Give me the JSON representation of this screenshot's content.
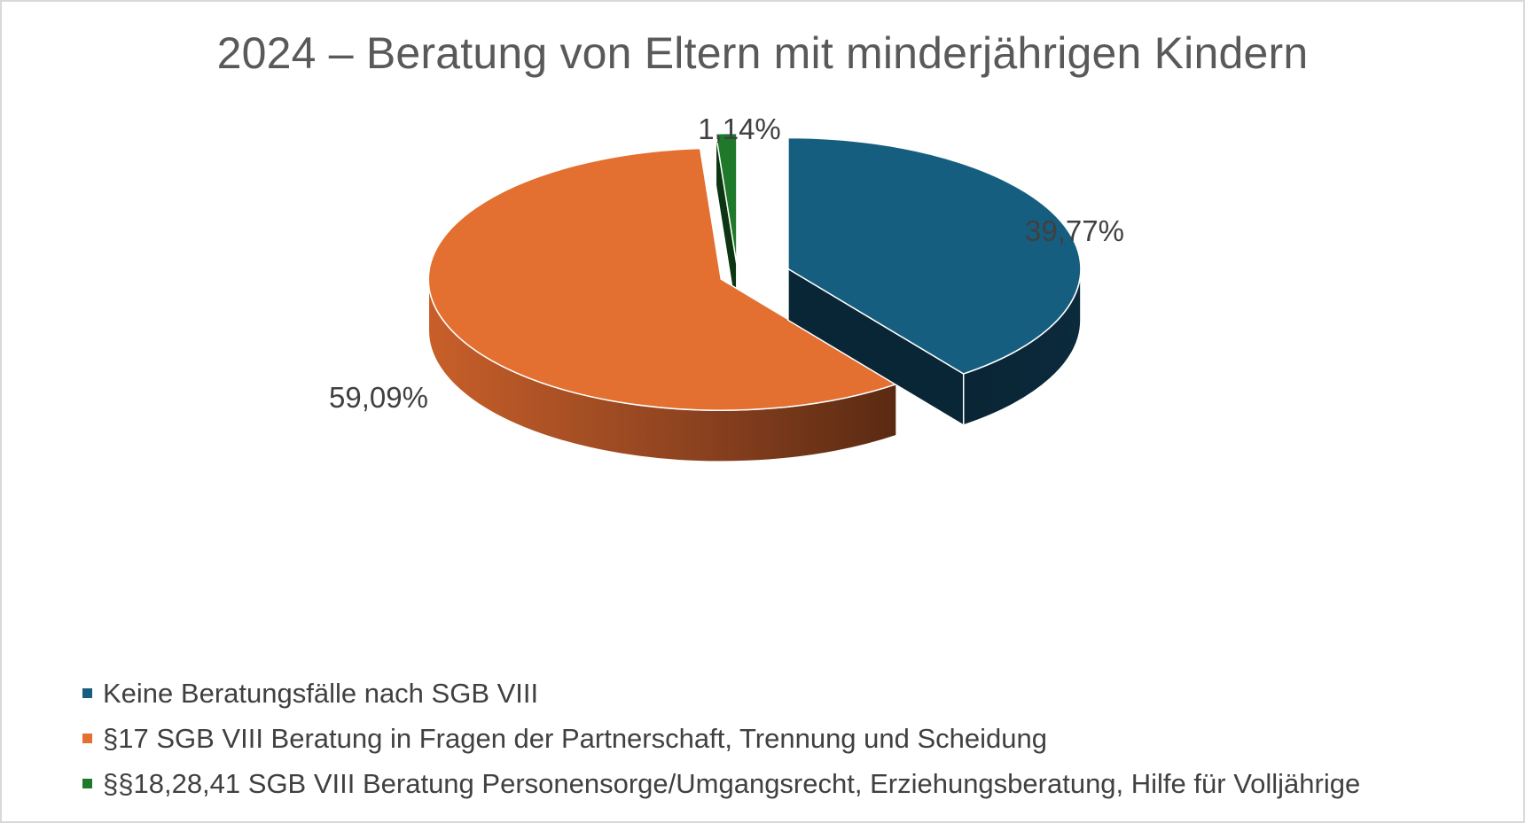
{
  "chart_data": {
    "type": "pie",
    "style": "3d-exploded",
    "title": "2024 – Beratung von Eltern mit minderjährigen Kindern",
    "slices": [
      {
        "label": "Keine Beratungsfälle nach SGB VIII",
        "value": 39.77,
        "value_label": "39,77%",
        "color": "#165e80"
      },
      {
        "label": "§17 SGB VIII Beratung in Fragen der Partnerschaft, Trennung und Scheidung",
        "value": 59.09,
        "value_label": "59,09%",
        "color": "#e36f30"
      },
      {
        "label": "§§18,28,41 SGB VIII Beratung Personensorge/Umgangsrecht, Erziehungsberatung, Hilfe für Volljährige",
        "value": 1.14,
        "value_label": "1,14%",
        "color": "#1e7a2a"
      }
    ],
    "legend_position": "bottom-left"
  }
}
